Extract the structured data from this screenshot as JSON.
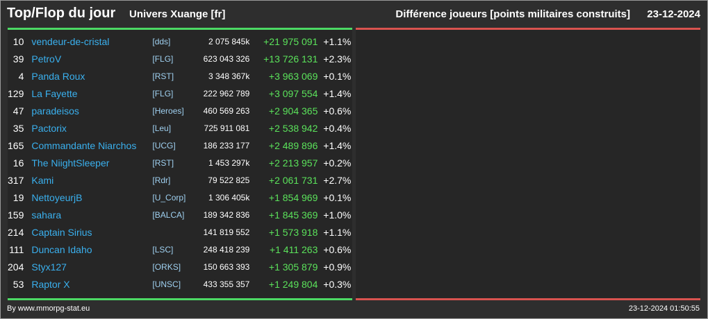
{
  "header": {
    "title": "Top/Flop du jour",
    "universe": "Univers Xuange [fr]",
    "metric": "Différence joueurs [points militaires construits]",
    "date": "23-12-2024"
  },
  "colors": {
    "accent_top": "#4cd964",
    "accent_flop": "#d9534f",
    "player_link": "#3ab0ee",
    "gain": "#5be35b"
  },
  "top": [
    {
      "rank": "10",
      "name": "vendeur-de-cristal",
      "alliance": "[dds]",
      "points": "2 075 845k",
      "diff": "+21 975 091",
      "pct": "+1.1%"
    },
    {
      "rank": "39",
      "name": "PetroV",
      "alliance": "[FLG]",
      "points": "623 043 326",
      "diff": "+13 726 131",
      "pct": "+2.3%"
    },
    {
      "rank": "4",
      "name": "Panda Roux",
      "alliance": "[RST]",
      "points": "3 348 367k",
      "diff": "+3 963 069",
      "pct": "+0.1%"
    },
    {
      "rank": "129",
      "name": "La Fayette",
      "alliance": "[FLG]",
      "points": "222 962 789",
      "diff": "+3 097 554",
      "pct": "+1.4%"
    },
    {
      "rank": "47",
      "name": "paradeisos",
      "alliance": "[Heroes]",
      "points": "460 569 263",
      "diff": "+2 904 365",
      "pct": "+0.6%"
    },
    {
      "rank": "35",
      "name": "Pactorix",
      "alliance": "[Leu]",
      "points": "725 911 081",
      "diff": "+2 538 942",
      "pct": "+0.4%"
    },
    {
      "rank": "165",
      "name": "Commandante Niarchos",
      "alliance": "[UCG]",
      "points": "186 233 177",
      "diff": "+2 489 896",
      "pct": "+1.4%"
    },
    {
      "rank": "16",
      "name": "The NiightSleeper",
      "alliance": "[RST]",
      "points": "1 453 297k",
      "diff": "+2 213 957",
      "pct": "+0.2%"
    },
    {
      "rank": "317",
      "name": "Kami",
      "alliance": "[Rdr]",
      "points": "79 522 825",
      "diff": "+2 061 731",
      "pct": "+2.7%"
    },
    {
      "rank": "19",
      "name": "NettoyeurjB",
      "alliance": "[U_Corp]",
      "points": "1 306 405k",
      "diff": "+1 854 969",
      "pct": "+0.1%"
    },
    {
      "rank": "159",
      "name": "sahara",
      "alliance": "[BALCA]",
      "points": "189 342 836",
      "diff": "+1 845 369",
      "pct": "+1.0%"
    },
    {
      "rank": "214",
      "name": "Captain Sirius",
      "alliance": "",
      "points": "141 819 552",
      "diff": "+1 573 918",
      "pct": "+1.1%"
    },
    {
      "rank": "111",
      "name": "Duncan Idaho",
      "alliance": "[LSC]",
      "points": "248 418 239",
      "diff": "+1 411 263",
      "pct": "+0.6%"
    },
    {
      "rank": "204",
      "name": "Styx127",
      "alliance": "[ORKS]",
      "points": "150 663 393",
      "diff": "+1 305 879",
      "pct": "+0.9%"
    },
    {
      "rank": "53",
      "name": "Raptor X",
      "alliance": "[UNSC]",
      "points": "433 355 357",
      "diff": "+1 249 804",
      "pct": "+0.3%"
    }
  ],
  "footer": {
    "credit": "By www.mmorpg-stat.eu",
    "timestamp": "23-12-2024 01:50:55"
  }
}
